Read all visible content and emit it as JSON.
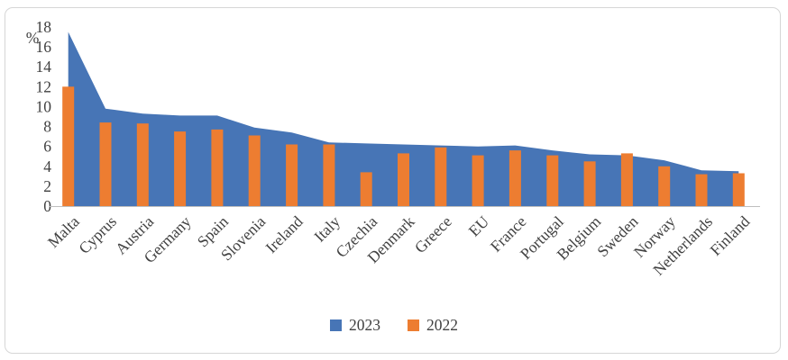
{
  "figure": {
    "background": "#ffffff",
    "border_color": "#d6d6d6",
    "text_color": "#404040",
    "axis_line_color": "#bfbfbf"
  },
  "chart_data": {
    "type": "area+bar combo",
    "title": "",
    "unit_label": "%",
    "categories": [
      "Malta",
      "Cyprus",
      "Austria",
      "Germany",
      "Spain",
      "Slovenia",
      "Ireland",
      "Italy",
      "Czechia",
      "Denmark",
      "Greece",
      "EU",
      "France",
      "Portugal",
      "Belgium",
      "Sweden",
      "Norway",
      "Netherlands",
      "Finland"
    ],
    "series": [
      {
        "name": "2023",
        "type": "area",
        "color": "#4775b6",
        "values": [
          17.5,
          9.8,
          9.3,
          9.1,
          9.1,
          7.9,
          7.4,
          6.4,
          6.3,
          6.2,
          6.1,
          6.0,
          6.1,
          5.6,
          5.2,
          5.1,
          4.6,
          3.6,
          3.5
        ]
      },
      {
        "name": "2022",
        "type": "bar",
        "color": "#ed7d31",
        "values": [
          12.0,
          8.4,
          8.3,
          7.5,
          7.7,
          7.1,
          6.2,
          6.2,
          3.4,
          5.3,
          5.9,
          5.1,
          5.6,
          5.1,
          4.5,
          5.3,
          4.0,
          3.2,
          3.3
        ]
      }
    ],
    "y_axis": {
      "min": 0,
      "max": 18,
      "step": 2,
      "tick_labels": [
        "0",
        "2",
        "4",
        "6",
        "8",
        "10",
        "12",
        "14",
        "16",
        "18"
      ]
    },
    "x_axis": {
      "label_rotation_deg": 45
    },
    "legend": {
      "position": "bottom",
      "entries": [
        "2023",
        "2022"
      ]
    },
    "grid": false
  }
}
